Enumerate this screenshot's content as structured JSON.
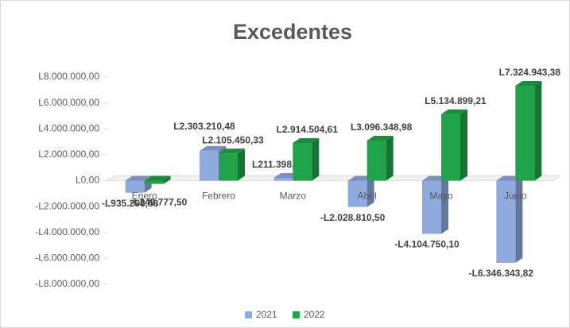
{
  "chart_data": {
    "type": "bar3d",
    "title": "Excedentes",
    "categories": [
      "Enero",
      "Febrero",
      "Marzo",
      "Abril",
      "Mayo",
      "Junio"
    ],
    "series": [
      {
        "name": "2021",
        "color": "#8faadc",
        "values": [
          -935298.68,
          2303210.48,
          211398.68,
          -2028810.5,
          -4104750.1,
          -6346343.82
        ],
        "value_labels": [
          "-L935.298,68",
          "L2.303.210,48",
          "L211.398,68",
          "-L2.028.810,50",
          "-L4.104.750,10",
          "-L6.346.343,82"
        ]
      },
      {
        "name": "2022",
        "color": "#21a449",
        "values": [
          -249777.5,
          2105450.33,
          2914504.61,
          3096348.98,
          5134899.21,
          7324943.38
        ],
        "value_labels": [
          "-L249.777,50",
          "L2.105.450,33",
          "L2.914.504,61",
          "L3.096.348,98",
          "L5.134.899,21",
          "L7.324.943,38"
        ]
      }
    ],
    "ylim": [
      -8000000,
      8000000
    ],
    "yticks": [
      {
        "value": -8000000,
        "label": "-L8.000.000,00"
      },
      {
        "value": -6000000,
        "label": "-L6.000.000,00"
      },
      {
        "value": -4000000,
        "label": "-L4.000.000,00"
      },
      {
        "value": -2000000,
        "label": "-L2.000.000,00"
      },
      {
        "value": 0,
        "label": "L0,00"
      },
      {
        "value": 2000000,
        "label": "L2.000.000,00"
      },
      {
        "value": 4000000,
        "label": "L4.000.000,00"
      },
      {
        "value": 6000000,
        "label": "L6.000.000,00"
      },
      {
        "value": 8000000,
        "label": "L8.000.000,00"
      }
    ],
    "grid": false,
    "legend": "bottom"
  }
}
